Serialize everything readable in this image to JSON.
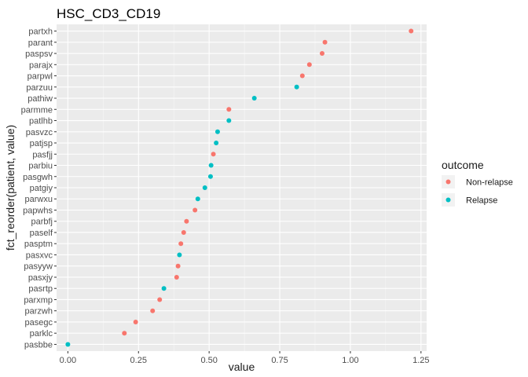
{
  "chart_data": {
    "type": "scatter",
    "title": "HSC_CD3_CD19",
    "xlabel": "value",
    "ylabel": "fct_reorder(patient, value)",
    "xlim": [
      -0.04,
      1.27
    ],
    "xticks": [
      0.0,
      0.25,
      0.5,
      0.75,
      1.0,
      1.25
    ],
    "xtick_labels": [
      "0.00",
      "0.25",
      "0.50",
      "0.75",
      "1.00",
      "1.25"
    ],
    "grid": true,
    "legend_position": "right",
    "legend": {
      "title": "outcome",
      "entries": [
        {
          "name": "Non-relapse",
          "color": "#F8766D"
        },
        {
          "name": "Relapse",
          "color": "#00BFC4"
        }
      ]
    },
    "categories": [
      "pasbbe",
      "parklc",
      "pasegc",
      "parzwh",
      "parxmp",
      "pasrtp",
      "pasxjy",
      "pasyyw",
      "pasxvc",
      "pasptm",
      "paself",
      "parbfj",
      "papwhs",
      "parwxu",
      "patgiy",
      "pasgwh",
      "parbiu",
      "pasfjj",
      "patjsp",
      "pasvzc",
      "patlhb",
      "parmme",
      "pathiw",
      "parzuu",
      "parpwl",
      "parajx",
      "paspsv",
      "parant",
      "partxh"
    ],
    "points": [
      {
        "patient": "pasbbe",
        "value": 0.0,
        "outcome": "Relapse"
      },
      {
        "patient": "parklc",
        "value": 0.2,
        "outcome": "Non-relapse"
      },
      {
        "patient": "pasegc",
        "value": 0.24,
        "outcome": "Non-relapse"
      },
      {
        "patient": "parzwh",
        "value": 0.3,
        "outcome": "Non-relapse"
      },
      {
        "patient": "parxmp",
        "value": 0.325,
        "outcome": "Non-relapse"
      },
      {
        "patient": "pasrtp",
        "value": 0.34,
        "outcome": "Relapse"
      },
      {
        "patient": "pasxjy",
        "value": 0.385,
        "outcome": "Non-relapse"
      },
      {
        "patient": "pasyyw",
        "value": 0.39,
        "outcome": "Non-relapse"
      },
      {
        "patient": "pasxvc",
        "value": 0.395,
        "outcome": "Relapse"
      },
      {
        "patient": "pasptm",
        "value": 0.4,
        "outcome": "Non-relapse"
      },
      {
        "patient": "paself",
        "value": 0.41,
        "outcome": "Non-relapse"
      },
      {
        "patient": "parbfj",
        "value": 0.42,
        "outcome": "Non-relapse"
      },
      {
        "patient": "papwhs",
        "value": 0.45,
        "outcome": "Non-relapse"
      },
      {
        "patient": "parwxu",
        "value": 0.46,
        "outcome": "Relapse"
      },
      {
        "patient": "patgiy",
        "value": 0.485,
        "outcome": "Relapse"
      },
      {
        "patient": "pasgwh",
        "value": 0.505,
        "outcome": "Relapse"
      },
      {
        "patient": "parbiu",
        "value": 0.507,
        "outcome": "Relapse"
      },
      {
        "patient": "pasfjj",
        "value": 0.515,
        "outcome": "Non-relapse"
      },
      {
        "patient": "patjsp",
        "value": 0.525,
        "outcome": "Relapse"
      },
      {
        "patient": "pasvzc",
        "value": 0.53,
        "outcome": "Relapse"
      },
      {
        "patient": "patlhb",
        "value": 0.57,
        "outcome": "Relapse"
      },
      {
        "patient": "parmme",
        "value": 0.57,
        "outcome": "Non-relapse"
      },
      {
        "patient": "pathiw",
        "value": 0.66,
        "outcome": "Relapse"
      },
      {
        "patient": "parzuu",
        "value": 0.81,
        "outcome": "Relapse"
      },
      {
        "patient": "parpwl",
        "value": 0.83,
        "outcome": "Non-relapse"
      },
      {
        "patient": "parajx",
        "value": 0.855,
        "outcome": "Non-relapse"
      },
      {
        "patient": "paspsv",
        "value": 0.9,
        "outcome": "Non-relapse"
      },
      {
        "patient": "parant",
        "value": 0.91,
        "outcome": "Non-relapse"
      },
      {
        "patient": "partxh",
        "value": 1.215,
        "outcome": "Non-relapse"
      }
    ]
  }
}
